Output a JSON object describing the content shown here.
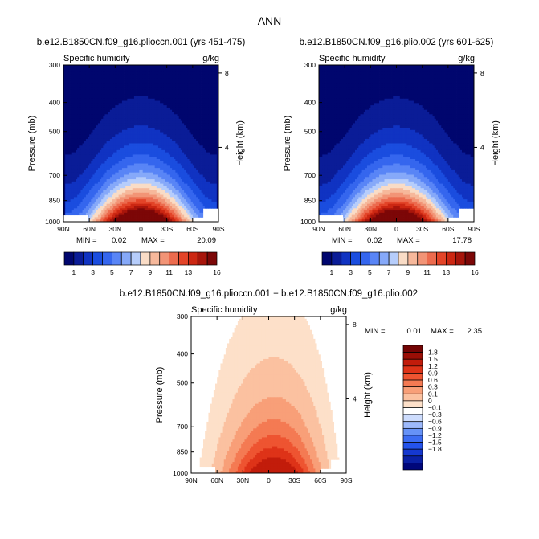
{
  "figure_title": "ANN",
  "colors": {
    "blue_red_16": [
      "#00066e",
      "#0a1c97",
      "#1033c2",
      "#1a4ddf",
      "#3566ee",
      "#5985f6",
      "#86a9f9",
      "#b6cdfb",
      "#f9dcc6",
      "#f6b89b",
      "#f29476",
      "#ec6b4e",
      "#e34428",
      "#cc2712",
      "#a7150b",
      "#7c0707"
    ],
    "diff_18": [
      "#00077a",
      "#0a20a4",
      "#1538cf",
      "#2453ec",
      "#3c6cf2",
      "#6692f7",
      "#9db9fb",
      "#cddcfd",
      "#ffffff",
      "#fde0c9",
      "#fbc1a0",
      "#f89f78",
      "#f47a53",
      "#ee5431",
      "#de3318",
      "#c21c0b",
      "#9a0e06",
      "#730404"
    ]
  },
  "chart_data": [
    {
      "type": "heatmap",
      "title": "b.e12.B1850CN.f09_g16.plioccn.001 (yrs 451-475)",
      "variable": "Specific humidity",
      "units": "g/kg",
      "xlabel": "",
      "ylabel": "Pressure (mb)",
      "y2label": "Height (km)",
      "xticks": [
        "90N",
        "60N",
        "30N",
        "0",
        "30S",
        "60S",
        "90S"
      ],
      "xrange": [
        90,
        -90
      ],
      "yticks": [
        300,
        400,
        500,
        700,
        850,
        1000
      ],
      "yrange": [
        1000,
        300
      ],
      "y2ticks": [
        8,
        4
      ],
      "stats": {
        "min_label": "MIN =",
        "min": "0.02",
        "max_label": "MAX =",
        "max": "20.09"
      },
      "surface_k": 0.8,
      "colorbar_labels": [
        "1",
        "3",
        "5",
        "7",
        "9",
        "11",
        "13",
        "16"
      ],
      "levels": [
        1,
        2,
        3,
        4,
        5,
        6,
        7,
        8,
        9,
        10,
        11,
        12,
        13,
        14,
        15
      ]
    },
    {
      "type": "heatmap",
      "title": "b.e12.B1850CN.f09_g16.plio.002 (yrs 601-625)",
      "variable": "Specific humidity",
      "units": "g/kg",
      "xlabel": "",
      "ylabel": "Pressure (mb)",
      "y2label": "Height (km)",
      "xticks": [
        "90N",
        "60N",
        "30N",
        "0",
        "30S",
        "60S",
        "90S"
      ],
      "xrange": [
        90,
        -90
      ],
      "yticks": [
        300,
        400,
        500,
        700,
        850,
        1000
      ],
      "yrange": [
        1000,
        300
      ],
      "y2ticks": [
        8,
        4
      ],
      "stats": {
        "min_label": "MIN =",
        "min": "0.02",
        "max_label": "MAX =",
        "max": "17.78"
      },
      "surface_k": 0.5,
      "colorbar_labels": [
        "1",
        "3",
        "5",
        "7",
        "9",
        "11",
        "13",
        "16"
      ],
      "levels": [
        1,
        2,
        3,
        4,
        5,
        6,
        7,
        8,
        9,
        10,
        11,
        12,
        13,
        14,
        15
      ]
    },
    {
      "type": "heatmap",
      "title": "b.e12.B1850CN.f09_g16.plioccn.001 − b.e12.B1850CN.f09_g16.plio.002",
      "variable": "Specific humidity",
      "units": "g/kg",
      "xlabel": "",
      "ylabel": "Pressure (mb)",
      "y2label": "Height (km)",
      "xticks": [
        "90N",
        "60N",
        "30N",
        "0",
        "30S",
        "60S",
        "90S"
      ],
      "xrange": [
        90,
        -90
      ],
      "yticks": [
        300,
        400,
        500,
        700,
        850,
        1000
      ],
      "yrange": [
        1000,
        300
      ],
      "y2ticks": [
        8,
        4
      ],
      "stats": {
        "min_label": "MIN =",
        "min": "0.01",
        "max_label": "MAX =",
        "max": "2.35"
      },
      "colorbar_labels": [
        "1.8",
        "1.5",
        "1.2",
        "0.9",
        "0.6",
        "0.3",
        "0.1",
        "0",
        "−0.1",
        "−0.3",
        "−0.6",
        "−0.9",
        "−1.2",
        "−1.5",
        "−1.8"
      ],
      "levels": [
        -1.8,
        -1.5,
        -1.2,
        -0.9,
        -0.6,
        -0.3,
        -0.1,
        0,
        0.1,
        0.3,
        0.6,
        0.9,
        1.2,
        1.5,
        1.8
      ]
    }
  ]
}
